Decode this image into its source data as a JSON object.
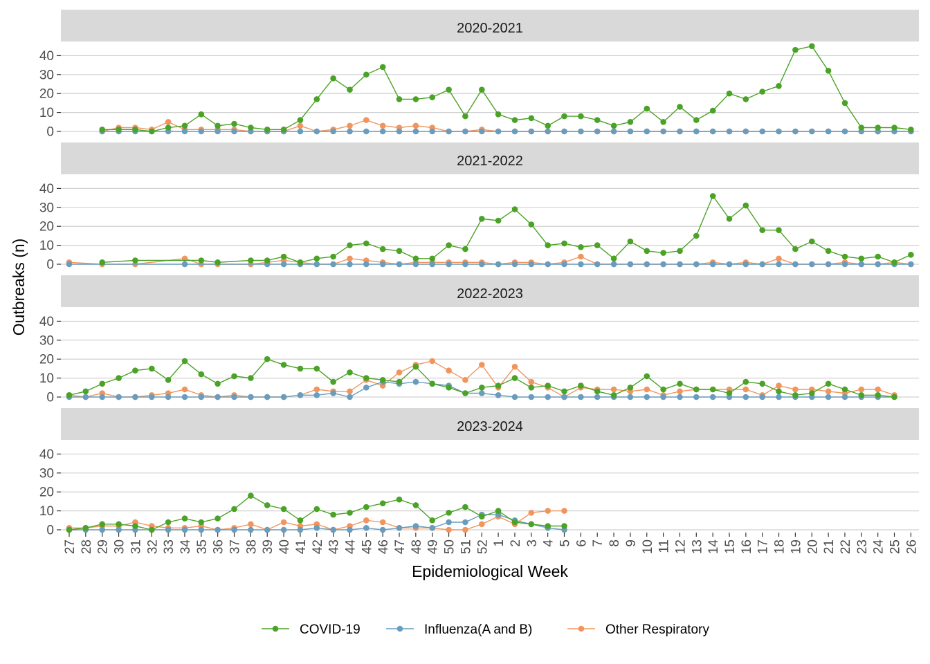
{
  "chart_data": {
    "type": "line",
    "xlabel": "Epidemiological Week",
    "ylabel": "Outbreaks (n)",
    "ylim": [
      0,
      46
    ],
    "yticks": [
      0,
      10,
      20,
      30,
      40
    ],
    "grid": true,
    "legend_position": "bottom",
    "weeks": [
      "27",
      "28",
      "29",
      "30",
      "31",
      "32",
      "33",
      "34",
      "35",
      "36",
      "37",
      "38",
      "39",
      "40",
      "41",
      "42",
      "43",
      "44",
      "45",
      "46",
      "47",
      "48",
      "49",
      "50",
      "51",
      "52",
      "1",
      "2",
      "3",
      "4",
      "5",
      "6",
      "7",
      "8",
      "9",
      "10",
      "11",
      "12",
      "13",
      "14",
      "15",
      "16",
      "17",
      "18",
      "19",
      "20",
      "21",
      "22",
      "23",
      "24",
      "25",
      "26"
    ],
    "legend": [
      {
        "key": "covid",
        "label": "COVID-19",
        "color": "#4aa226"
      },
      {
        "key": "flu",
        "label": "Influenza(A and B)",
        "color": "#6a9cbd"
      },
      {
        "key": "other",
        "label": "Other Respiratory",
        "color": "#f0955e"
      }
    ],
    "panels": [
      {
        "title": "2020-2021",
        "series": {
          "covid": [
            null,
            null,
            1,
            1,
            1,
            0,
            2,
            3,
            9,
            3,
            4,
            2,
            1,
            1,
            6,
            17,
            28,
            22,
            30,
            34,
            17,
            17,
            18,
            22,
            8,
            22,
            9,
            6,
            7,
            3,
            8,
            8,
            6,
            3,
            5,
            12,
            5,
            13,
            6,
            11,
            20,
            17,
            21,
            24,
            43,
            45,
            32,
            15,
            2,
            2,
            2,
            1
          ],
          "flu": [
            null,
            null,
            0,
            0,
            0,
            0,
            0,
            0,
            0,
            0,
            0,
            0,
            0,
            0,
            0,
            0,
            0,
            0,
            0,
            0,
            0,
            0,
            0,
            0,
            0,
            0,
            0,
            0,
            0,
            0,
            0,
            0,
            0,
            0,
            0,
            0,
            0,
            0,
            0,
            0,
            0,
            0,
            0,
            0,
            0,
            0,
            0,
            0,
            0,
            0,
            0,
            0
          ],
          "other": [
            null,
            null,
            0,
            2,
            2,
            1,
            5,
            1,
            1,
            1,
            1,
            0,
            0,
            0,
            3,
            0,
            1,
            3,
            6,
            3,
            2,
            3,
            2,
            0,
            0,
            1,
            0,
            0,
            0,
            0,
            0,
            0,
            0,
            0,
            0,
            0,
            0,
            0,
            0,
            0,
            0,
            0,
            0,
            0,
            0,
            0,
            0,
            0,
            0,
            0,
            0,
            0
          ]
        }
      },
      {
        "title": "2021-2022",
        "series": {
          "covid": [
            null,
            null,
            1,
            null,
            2,
            null,
            null,
            null,
            2,
            1,
            null,
            2,
            2,
            4,
            1,
            3,
            4,
            10,
            11,
            8,
            7,
            3,
            3,
            10,
            8,
            24,
            23,
            29,
            21,
            10,
            11,
            9,
            10,
            3,
            12,
            7,
            6,
            7,
            15,
            36,
            24,
            31,
            18,
            18,
            8,
            12,
            7,
            4,
            3,
            4,
            1,
            5
          ],
          "flu": [
            0,
            null,
            null,
            null,
            null,
            null,
            null,
            0,
            null,
            null,
            null,
            null,
            0,
            0,
            0,
            0,
            0,
            0,
            0,
            0,
            0,
            0,
            0,
            0,
            0,
            0,
            0,
            0,
            0,
            0,
            0,
            0,
            0,
            0,
            0,
            0,
            0,
            0,
            0,
            0,
            0,
            0,
            0,
            0,
            0,
            0,
            0,
            0,
            0,
            0,
            0,
            0
          ],
          "other": [
            1,
            null,
            0,
            null,
            0,
            null,
            null,
            3,
            0,
            0,
            null,
            0,
            1,
            2,
            1,
            0,
            0,
            3,
            2,
            1,
            0,
            1,
            1,
            1,
            1,
            1,
            0,
            1,
            1,
            0,
            1,
            4,
            0,
            0,
            0,
            0,
            0,
            0,
            0,
            1,
            0,
            1,
            0,
            3,
            0,
            0,
            0,
            1,
            0,
            0,
            1,
            0
          ]
        }
      },
      {
        "title": "2022-2023",
        "series": {
          "covid": [
            1,
            3,
            7,
            10,
            14,
            15,
            9,
            19,
            12,
            7,
            11,
            10,
            20,
            17,
            15,
            15,
            8,
            13,
            10,
            9,
            8,
            16,
            7,
            5,
            2,
            5,
            6,
            10,
            5,
            6,
            3,
            6,
            3,
            1,
            5,
            11,
            4,
            7,
            4,
            4,
            2,
            8,
            7,
            3,
            1,
            2,
            7,
            4,
            1,
            1,
            0,
            null
          ],
          "flu": [
            0,
            0,
            0,
            0,
            0,
            0,
            0,
            0,
            0,
            0,
            0,
            0,
            0,
            0,
            1,
            1,
            2,
            0,
            5,
            8,
            7,
            8,
            7,
            6,
            2,
            2,
            1,
            0,
            0,
            0,
            0,
            0,
            0,
            0,
            0,
            0,
            0,
            0,
            0,
            0,
            0,
            0,
            0,
            0,
            0,
            0,
            0,
            0,
            0,
            0,
            0,
            null
          ],
          "other": [
            1,
            0,
            2,
            0,
            0,
            1,
            2,
            4,
            1,
            0,
            1,
            0,
            0,
            0,
            1,
            4,
            3,
            3,
            9,
            6,
            13,
            17,
            19,
            14,
            9,
            17,
            5,
            16,
            8,
            5,
            0,
            5,
            4,
            4,
            3,
            4,
            1,
            3,
            4,
            4,
            4,
            4,
            1,
            6,
            4,
            4,
            3,
            2,
            4,
            4,
            1,
            null
          ]
        }
      },
      {
        "title": "2023-2024",
        "series": {
          "covid": [
            0,
            1,
            3,
            3,
            2,
            0,
            4,
            6,
            4,
            6,
            11,
            18,
            13,
            11,
            5,
            11,
            8,
            9,
            12,
            14,
            16,
            13,
            5,
            9,
            12,
            7,
            10,
            4,
            3,
            2,
            2,
            null,
            null,
            null,
            null,
            null,
            null,
            null,
            null,
            null,
            null,
            null,
            null,
            null,
            null,
            null,
            null,
            null,
            null,
            null,
            null,
            null
          ],
          "flu": [
            0,
            0,
            0,
            0,
            0,
            0,
            0,
            0,
            0,
            0,
            0,
            0,
            0,
            0,
            0,
            1,
            0,
            0,
            1,
            0,
            1,
            2,
            1,
            4,
            4,
            8,
            8,
            5,
            3,
            1,
            0,
            null,
            null,
            null,
            null,
            null,
            null,
            null,
            null,
            null,
            null,
            null,
            null,
            null,
            null,
            null,
            null,
            null,
            null,
            null,
            null,
            null
          ],
          "other": [
            1,
            1,
            2,
            2,
            4,
            2,
            1,
            1,
            2,
            0,
            1,
            3,
            0,
            4,
            2,
            3,
            0,
            2,
            5,
            4,
            1,
            1,
            1,
            0,
            0,
            3,
            7,
            3,
            9,
            10,
            10,
            null,
            null,
            null,
            null,
            null,
            null,
            null,
            null,
            null,
            null,
            null,
            null,
            null,
            null,
            null,
            null,
            null,
            null,
            null,
            null,
            null
          ]
        }
      }
    ]
  }
}
